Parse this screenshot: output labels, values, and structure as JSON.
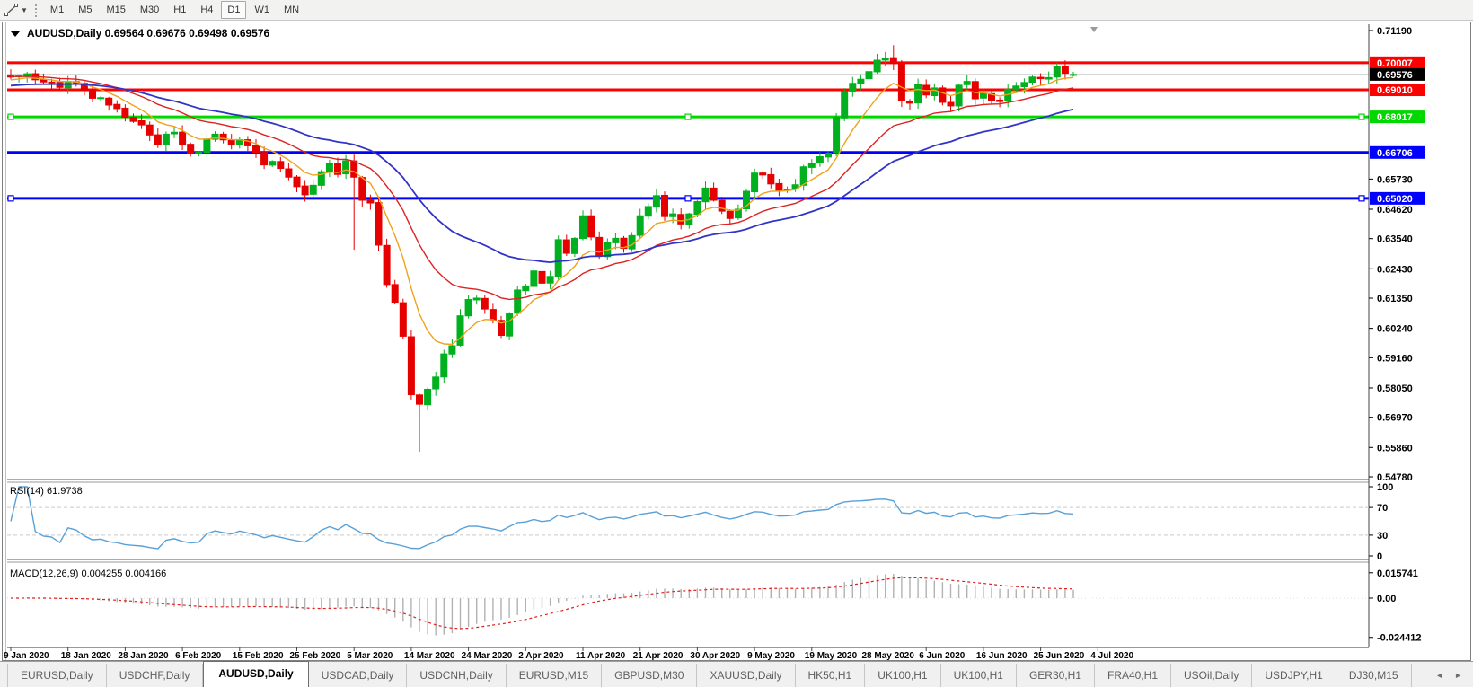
{
  "toolbar": {
    "timeframes": [
      "M1",
      "M5",
      "M15",
      "M30",
      "H1",
      "H4",
      "D1",
      "W1",
      "MN"
    ],
    "active_timeframe": "D1"
  },
  "chart": {
    "title": {
      "symbol": "AUDUSD,Daily",
      "open": "0.69564",
      "high": "0.69676",
      "low": "0.69498",
      "close": "0.69576"
    },
    "price_axis": {
      "max_price": 0.7119,
      "min_price": 0.5478,
      "plain_labels": [
        "0.71190",
        "0.65730",
        "0.64620",
        "0.63540",
        "0.62430",
        "0.61350",
        "0.60240",
        "0.59160",
        "0.58050",
        "0.56970",
        "0.55860",
        "0.54780"
      ],
      "badges": [
        {
          "text": "0.70007",
          "price": 0.70007,
          "bg": "#fe0000",
          "fg": "#ffffff",
          "kind": "resistance-line"
        },
        {
          "text": "0.69576",
          "price": 0.69576,
          "bg": "#000000",
          "fg": "#ffffff",
          "kind": "current-price"
        },
        {
          "text": "0.69010",
          "price": 0.6901,
          "bg": "#fe0000",
          "fg": "#ffffff",
          "kind": "resistance-line"
        },
        {
          "text": "0.68017",
          "price": 0.68017,
          "bg": "#00d800",
          "fg": "#ffffff",
          "kind": "support-line"
        },
        {
          "text": "0.66706",
          "price": 0.66706,
          "bg": "#0000fe",
          "fg": "#ffffff",
          "kind": "support-line"
        },
        {
          "text": "0.65020",
          "price": 0.6502,
          "bg": "#0000fe",
          "fg": "#ffffff",
          "kind": "support-line"
        }
      ]
    },
    "hlines": [
      {
        "price": 0.70007,
        "color": "#fe0000",
        "width": 3,
        "handles": false
      },
      {
        "price": 0.69576,
        "color": "#c0c0c0",
        "width": 1,
        "handles": false
      },
      {
        "price": 0.6901,
        "color": "#fe0000",
        "width": 3,
        "handles": false
      },
      {
        "price": 0.68017,
        "color": "#00d800",
        "width": 3,
        "handles": true
      },
      {
        "price": 0.66706,
        "color": "#0000fe",
        "width": 3,
        "handles": false
      },
      {
        "price": 0.6502,
        "color": "#0000fe",
        "width": 3,
        "handles": true
      }
    ]
  },
  "chart_data": {
    "type": "candlestick",
    "symbol": "AUDUSD",
    "timeframe": "Daily",
    "x_labels": [
      "9 Jan 2020",
      "18 Jan 2020",
      "28 Jan 2020",
      "6 Feb 2020",
      "15 Feb 2020",
      "25 Feb 2020",
      "5 Mar 2020",
      "14 Mar 2020",
      "24 Mar 2020",
      "2 Apr 2020",
      "11 Apr 2020",
      "21 Apr 2020",
      "30 Apr 2020",
      "9 May 2020",
      "19 May 2020",
      "28 May 2020",
      "6 Jun 2020",
      "16 Jun 2020",
      "25 Jun 2020",
      "4 Jul 2020"
    ],
    "first_open": 0.6952,
    "closes": [
      0.6948,
      0.6952,
      0.696,
      0.6938,
      0.693,
      0.6928,
      0.691,
      0.6932,
      0.6925,
      0.6898,
      0.687,
      0.6872,
      0.6845,
      0.6832,
      0.68,
      0.6785,
      0.6772,
      0.6735,
      0.67,
      0.6738,
      0.6745,
      0.67,
      0.6668,
      0.6672,
      0.672,
      0.6738,
      0.6717,
      0.67,
      0.6718,
      0.6695,
      0.667,
      0.6625,
      0.6638,
      0.6612,
      0.658,
      0.6545,
      0.6515,
      0.655,
      0.66,
      0.663,
      0.659,
      0.664,
      0.658,
      0.6495,
      0.6485,
      0.633,
      0.6185,
      0.612,
      0.5995,
      0.578,
      0.5745,
      0.58,
      0.5845,
      0.593,
      0.596,
      0.607,
      0.613,
      0.6135,
      0.6095,
      0.6055,
      0.5998,
      0.6078,
      0.6165,
      0.618,
      0.6235,
      0.619,
      0.6215,
      0.635,
      0.63,
      0.6355,
      0.6438,
      0.636,
      0.629,
      0.634,
      0.6355,
      0.6318,
      0.6365,
      0.6438,
      0.6472,
      0.6512,
      0.6435,
      0.6445,
      0.6408,
      0.6445,
      0.649,
      0.654,
      0.6495,
      0.6455,
      0.6428,
      0.6462,
      0.6528,
      0.6595,
      0.6588,
      0.6555,
      0.653,
      0.6535,
      0.6552,
      0.6618,
      0.6632,
      0.6655,
      0.6668,
      0.68,
      0.6895,
      0.6925,
      0.694,
      0.6968,
      0.701,
      0.7015,
      0.6998,
      0.686,
      0.6852,
      0.692,
      0.6882,
      0.6908,
      0.6855,
      0.6842,
      0.6918,
      0.6932,
      0.6868,
      0.6888,
      0.6862,
      0.6858,
      0.6903,
      0.6915,
      0.6928,
      0.6948,
      0.6942,
      0.6946,
      0.6988,
      0.6962,
      0.69576
    ],
    "overrides": {
      "42": {
        "l": 0.6313
      },
      "50": {
        "l": 0.557
      },
      "108": {
        "h": 0.7065
      },
      "130": {
        "o": 0.69564,
        "h": 0.69676,
        "l": 0.69498,
        "c": 0.69576
      }
    },
    "up_color": "#00b01e",
    "down_color": "#e60000",
    "moving_averages": [
      {
        "name": "fast",
        "period": 8,
        "color": "#efa21c",
        "seed": 0.6935
      },
      {
        "name": "medium",
        "period": 20,
        "color": "#dd2222",
        "seed": 0.695
      },
      {
        "name": "slow",
        "period": 38,
        "color": "#3134c6",
        "seed": 0.6915
      }
    ]
  },
  "rsi": {
    "label": "RSI(14) 61.9738",
    "period": 14,
    "current": 61.9738,
    "scale_labels": [
      "100",
      "70",
      "30",
      "0"
    ],
    "dashed_levels": [
      70,
      30
    ],
    "line_color": "#58a1d8"
  },
  "macd": {
    "label": "MACD(12,26,9) 0.004255 0.004166",
    "fast": 12,
    "slow": 26,
    "signal_period": 9,
    "macd_value": 0.004255,
    "signal_value": 0.004166,
    "scale_labels": [
      "0.015741",
      "0.00",
      "-0.024412"
    ],
    "hist_color": "#b2b2b2",
    "signal_color": "#e01f1f"
  },
  "tabs": {
    "items": [
      "EURUSD,Daily",
      "USDCHF,Daily",
      "AUDUSD,Daily",
      "USDCAD,Daily",
      "USDCNH,Daily",
      "EURUSD,M15",
      "GBPUSD,M30",
      "XAUUSD,Daily",
      "HK50,H1",
      "UK100,H1",
      "UK100,H1",
      "GER30,H1",
      "FRA40,H1",
      "USOil,Daily",
      "USDJPY,H1",
      "DJ30,M15"
    ],
    "active_index": 2,
    "scroll_left": "◄",
    "scroll_right": "►"
  }
}
